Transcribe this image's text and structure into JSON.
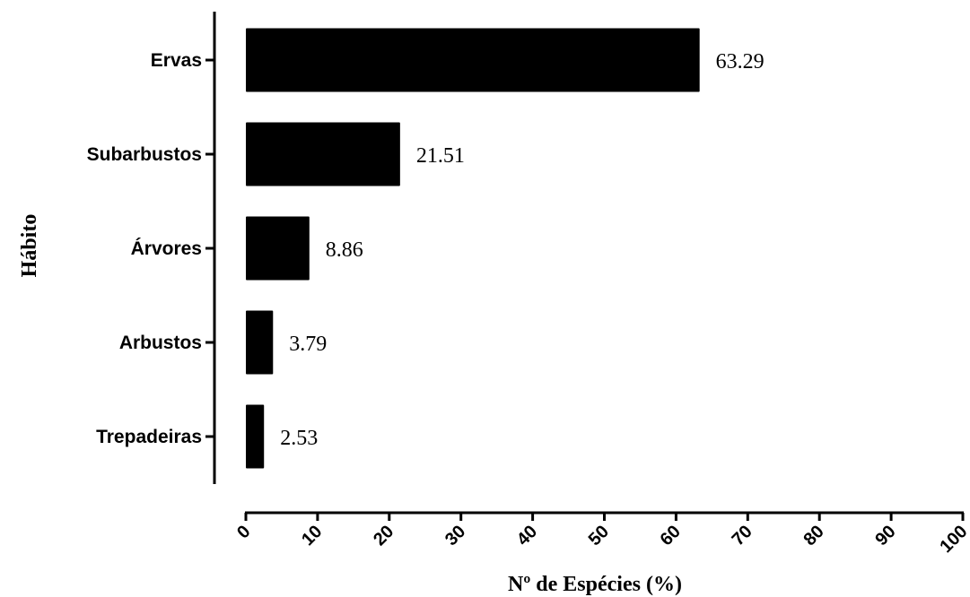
{
  "chart_data": {
    "type": "bar",
    "orientation": "horizontal",
    "categories": [
      "Ervas",
      "Subarbustos",
      "Árvores",
      "Arbustos",
      "Trepadeiras"
    ],
    "values": [
      63.29,
      21.51,
      8.86,
      3.79,
      2.53
    ],
    "value_labels": [
      "63.29",
      "21.51",
      "8.86",
      "3.79",
      "2.53"
    ],
    "xlabel": "Nº de Espécies (%)",
    "ylabel": "Hábito",
    "xlim": [
      0,
      100
    ],
    "xticks": [
      0,
      10,
      20,
      30,
      40,
      50,
      60,
      70,
      80,
      90,
      100
    ],
    "xtick_labels": [
      "0",
      "10",
      "20",
      "30",
      "40",
      "50",
      "60",
      "70",
      "80",
      "90",
      "100"
    ],
    "grid": false,
    "legend": "none",
    "bar_color": "#000000"
  }
}
